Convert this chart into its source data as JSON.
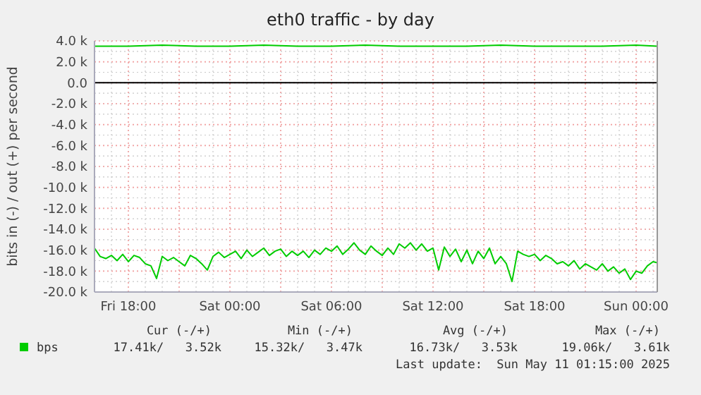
{
  "chart_data": {
    "type": "line",
    "title": "eth0 traffic - by day",
    "ylabel": "bits in (-) / out (+) per second",
    "xlim": [
      "2025-05-09T16:00",
      "2025-05-11T01:15"
    ],
    "xticks": [
      {
        "value": "2025-05-09T18:00",
        "label": "Fri 18:00"
      },
      {
        "value": "2025-05-09T21:00",
        "label": null
      },
      {
        "value": "2025-05-10T00:00",
        "label": "Sat 00:00"
      },
      {
        "value": "2025-05-10T03:00",
        "label": null
      },
      {
        "value": "2025-05-10T06:00",
        "label": "Sat 06:00"
      },
      {
        "value": "2025-05-10T09:00",
        "label": null
      },
      {
        "value": "2025-05-10T12:00",
        "label": "Sat 12:00"
      },
      {
        "value": "2025-05-10T15:00",
        "label": null
      },
      {
        "value": "2025-05-10T18:00",
        "label": "Sat 18:00"
      },
      {
        "value": "2025-05-10T21:00",
        "label": null
      },
      {
        "value": "2025-05-11T00:00",
        "label": "Sun 00:00"
      }
    ],
    "ylim": [
      -20000,
      4000
    ],
    "yticks": [
      {
        "value": 4000,
        "label": "4.0 k"
      },
      {
        "value": 2000,
        "label": "2.0 k"
      },
      {
        "value": 0,
        "label": "0.0"
      },
      {
        "value": -2000,
        "label": "-2.0 k"
      },
      {
        "value": -4000,
        "label": "-4.0 k"
      },
      {
        "value": -6000,
        "label": "-6.0 k"
      },
      {
        "value": -8000,
        "label": "-8.0 k"
      },
      {
        "value": -10000,
        "label": "-10.0 k"
      },
      {
        "value": -12000,
        "label": "-12.0 k"
      },
      {
        "value": -14000,
        "label": "-14.0 k"
      },
      {
        "value": -16000,
        "label": "-16.0 k"
      },
      {
        "value": -18000,
        "label": "-18.0 k"
      },
      {
        "value": -20000,
        "label": "-20.0 k"
      }
    ],
    "grid": true,
    "legend": "bottom",
    "marker": "none",
    "line_style": "solid",
    "ref_lines": [
      {
        "axis": "y",
        "value": 0,
        "color": "#000000"
      }
    ],
    "series": [
      {
        "name": "bps",
        "color": "#00cc00",
        "x": [
          "2025-05-09T16:00",
          "2025-05-09T16:20",
          "2025-05-09T16:40",
          "2025-05-09T17:00",
          "2025-05-09T17:20",
          "2025-05-09T17:40",
          "2025-05-09T18:00",
          "2025-05-09T18:20",
          "2025-05-09T18:40",
          "2025-05-09T19:00",
          "2025-05-09T19:20",
          "2025-05-09T19:40",
          "2025-05-09T20:00",
          "2025-05-09T20:20",
          "2025-05-09T20:40",
          "2025-05-09T21:00",
          "2025-05-09T21:20",
          "2025-05-09T21:40",
          "2025-05-09T22:00",
          "2025-05-09T22:20",
          "2025-05-09T22:40",
          "2025-05-09T23:00",
          "2025-05-09T23:20",
          "2025-05-09T23:40",
          "2025-05-10T00:00",
          "2025-05-10T00:20",
          "2025-05-10T00:40",
          "2025-05-10T01:00",
          "2025-05-10T01:20",
          "2025-05-10T01:40",
          "2025-05-10T02:00",
          "2025-05-10T02:20",
          "2025-05-10T02:40",
          "2025-05-10T03:00",
          "2025-05-10T03:20",
          "2025-05-10T03:40",
          "2025-05-10T04:00",
          "2025-05-10T04:20",
          "2025-05-10T04:40",
          "2025-05-10T05:00",
          "2025-05-10T05:20",
          "2025-05-10T05:40",
          "2025-05-10T06:00",
          "2025-05-10T06:20",
          "2025-05-10T06:40",
          "2025-05-10T07:00",
          "2025-05-10T07:20",
          "2025-05-10T07:40",
          "2025-05-10T08:00",
          "2025-05-10T08:20",
          "2025-05-10T08:40",
          "2025-05-10T09:00",
          "2025-05-10T09:20",
          "2025-05-10T09:40",
          "2025-05-10T10:00",
          "2025-05-10T10:20",
          "2025-05-10T10:40",
          "2025-05-10T11:00",
          "2025-05-10T11:20",
          "2025-05-10T11:40",
          "2025-05-10T12:00",
          "2025-05-10T12:20",
          "2025-05-10T12:40",
          "2025-05-10T13:00",
          "2025-05-10T13:20",
          "2025-05-10T13:40",
          "2025-05-10T14:00",
          "2025-05-10T14:20",
          "2025-05-10T14:40",
          "2025-05-10T15:00",
          "2025-05-10T15:20",
          "2025-05-10T15:40",
          "2025-05-10T16:00",
          "2025-05-10T16:20",
          "2025-05-10T16:40",
          "2025-05-10T17:00",
          "2025-05-10T17:20",
          "2025-05-10T17:40",
          "2025-05-10T18:00",
          "2025-05-10T18:20",
          "2025-05-10T18:40",
          "2025-05-10T19:00",
          "2025-05-10T19:20",
          "2025-05-10T19:40",
          "2025-05-10T20:00",
          "2025-05-10T20:20",
          "2025-05-10T20:40",
          "2025-05-10T21:00",
          "2025-05-10T21:20",
          "2025-05-10T21:40",
          "2025-05-10T22:00",
          "2025-05-10T22:20",
          "2025-05-10T22:40",
          "2025-05-10T23:00",
          "2025-05-10T23:20",
          "2025-05-10T23:40",
          "2025-05-11T00:00",
          "2025-05-11T00:20",
          "2025-05-11T00:40",
          "2025-05-11T01:00",
          "2025-05-11T01:15"
        ],
        "values": [
          -15800,
          -16600,
          -16800,
          -16500,
          -17000,
          -16400,
          -17100,
          -16500,
          -16700,
          -17300,
          -17500,
          -18700,
          -16600,
          -17000,
          -16700,
          -17100,
          -17500,
          -16500,
          -16800,
          -17300,
          -17900,
          -16600,
          -16200,
          -16700,
          -16400,
          -16100,
          -16800,
          -16000,
          -16600,
          -16200,
          -15800,
          -16500,
          -16100,
          -15900,
          -16600,
          -16100,
          -16500,
          -16100,
          -16700,
          -16000,
          -16400,
          -15800,
          -16100,
          -15600,
          -16400,
          -15900,
          -15300,
          -16000,
          -16400,
          -15600,
          -16100,
          -16500,
          -15800,
          -16400,
          -15400,
          -15800,
          -15300,
          -16000,
          -15400,
          -16100,
          -15800,
          -17900,
          -15700,
          -16600,
          -15900,
          -17100,
          -16000,
          -17300,
          -16100,
          -16800,
          -15800,
          -17300,
          -16600,
          -17300,
          -19000,
          -16100,
          -16400,
          -16600,
          -16400,
          -17000,
          -16500,
          -16800,
          -17300,
          -17100,
          -17500,
          -17000,
          -17800,
          -17300,
          -17600,
          -17900,
          -17300,
          -18000,
          -17600,
          -18200,
          -17800,
          -18800,
          -18000,
          -18200,
          -17500,
          -17100,
          -17200
        ]
      },
      {
        "color": "#00cc00",
        "x": [
          "2025-05-09T16:00",
          "2025-05-09T18:00",
          "2025-05-09T20:00",
          "2025-05-09T22:00",
          "2025-05-10T00:00",
          "2025-05-10T02:00",
          "2025-05-10T04:00",
          "2025-05-10T06:00",
          "2025-05-10T08:00",
          "2025-05-10T10:00",
          "2025-05-10T12:00",
          "2025-05-10T14:00",
          "2025-05-10T16:00",
          "2025-05-10T18:00",
          "2025-05-10T20:00",
          "2025-05-10T22:00",
          "2025-05-11T00:00",
          "2025-05-11T01:15"
        ],
        "values": [
          3500,
          3500,
          3600,
          3500,
          3500,
          3600,
          3500,
          3500,
          3600,
          3500,
          3500,
          3500,
          3600,
          3500,
          3500,
          3500,
          3600,
          3500
        ]
      }
    ],
    "annotations": [
      "Cur (-/+)",
      "Min (-/+)",
      "Avg (-/+)",
      "Max (-/+)",
      "17.41k/   3.52k",
      "15.32k/   3.47k",
      "16.73k/   3.53k",
      "19.06k/   3.61k",
      "Last update:  Sun May 11 01:15:00 2025"
    ]
  }
}
